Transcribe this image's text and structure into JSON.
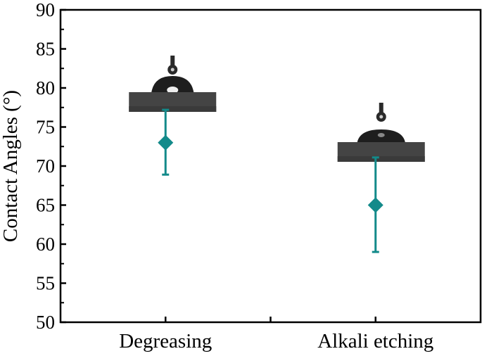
{
  "chart_data": {
    "type": "scatter",
    "title": "",
    "xlabel": "",
    "ylabel": "Contact Angles (°)",
    "categories": [
      "Degreasing",
      "Alkali etching"
    ],
    "values": [
      73.0,
      65.0
    ],
    "error_low": [
      68.9,
      59.0
    ],
    "error_high": [
      77.2,
      71.1
    ],
    "ylim": [
      50,
      90
    ],
    "yticks": [
      50,
      55,
      60,
      65,
      70,
      75,
      80,
      85,
      90
    ],
    "grid": false,
    "marker": "diamond",
    "color": "#138a8a",
    "insets": [
      "droplet-image-degreasing",
      "droplet-image-alkali-etching"
    ]
  }
}
